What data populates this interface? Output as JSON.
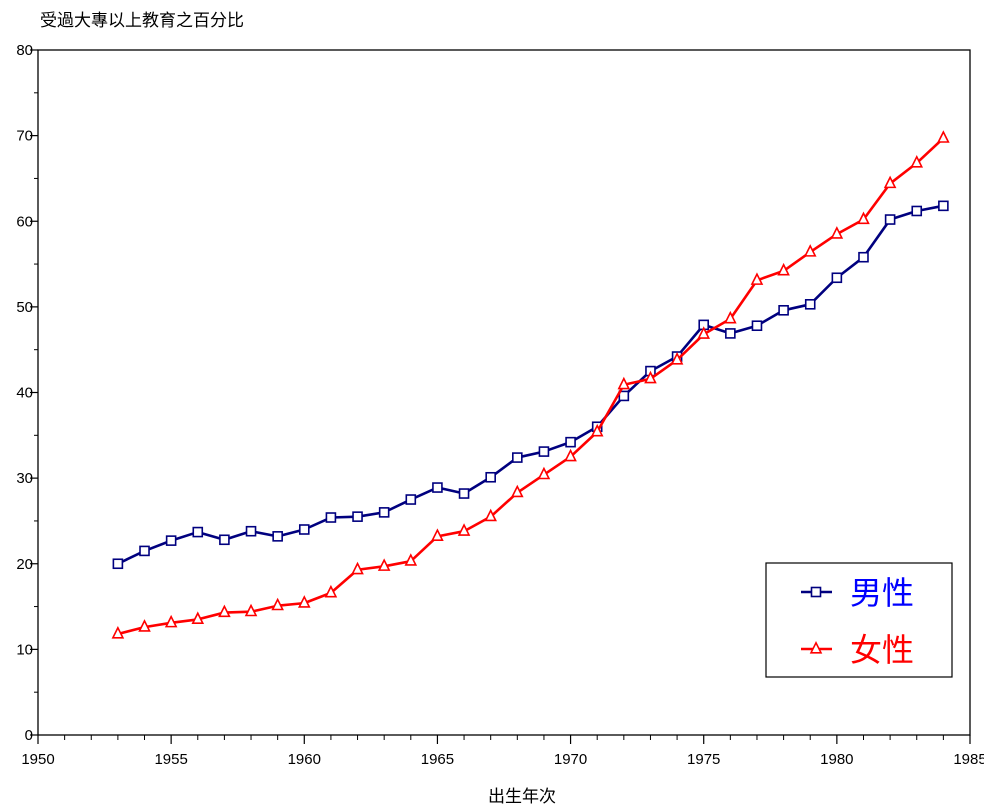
{
  "chart_data": {
    "type": "line",
    "ylabel": "受過大專以上教育之百分比",
    "xlabel": "出生年次",
    "xlim": [
      1950,
      1985
    ],
    "ylim": [
      0,
      80
    ],
    "x_ticks": [
      1950,
      1955,
      1960,
      1965,
      1970,
      1975,
      1980,
      1985
    ],
    "y_ticks": [
      0,
      10,
      20,
      30,
      40,
      50,
      60,
      70,
      80
    ],
    "grid": false,
    "legend_position": "bottom-right",
    "series": [
      {
        "name": "男性",
        "color": "#00007f",
        "label_color": "#0000ff",
        "marker": "square",
        "x": [
          1953,
          1954,
          1955,
          1956,
          1957,
          1958,
          1959,
          1960,
          1961,
          1962,
          1963,
          1964,
          1965,
          1966,
          1967,
          1968,
          1969,
          1970,
          1971,
          1972,
          1973,
          1974,
          1975,
          1976,
          1977,
          1978,
          1979,
          1980,
          1981,
          1982,
          1983,
          1984
        ],
        "values": [
          20.0,
          21.5,
          22.7,
          23.7,
          22.8,
          23.8,
          23.2,
          24.0,
          25.4,
          25.5,
          26.0,
          27.5,
          28.9,
          28.2,
          30.1,
          32.4,
          33.1,
          34.2,
          36.0,
          39.6,
          42.5,
          44.2,
          47.9,
          46.9,
          47.8,
          49.6,
          50.3,
          53.4,
          55.8,
          60.2,
          61.2,
          61.8
        ]
      },
      {
        "name": "女性",
        "color": "#ff0000",
        "label_color": "#ff0000",
        "marker": "triangle",
        "x": [
          1953,
          1954,
          1955,
          1956,
          1957,
          1958,
          1959,
          1960,
          1961,
          1962,
          1963,
          1964,
          1965,
          1966,
          1967,
          1968,
          1969,
          1970,
          1971,
          1972,
          1973,
          1974,
          1975,
          1976,
          1977,
          1978,
          1979,
          1980,
          1981,
          1982,
          1983,
          1984
        ],
        "values": [
          11.8,
          12.6,
          13.1,
          13.5,
          14.3,
          14.4,
          15.1,
          15.4,
          16.6,
          19.3,
          19.7,
          20.3,
          23.2,
          23.8,
          25.5,
          28.3,
          30.4,
          32.5,
          35.4,
          40.9,
          41.6,
          43.8,
          46.8,
          48.6,
          53.1,
          54.2,
          56.4,
          58.5,
          60.2,
          64.4,
          66.8,
          69.7
        ]
      }
    ]
  }
}
